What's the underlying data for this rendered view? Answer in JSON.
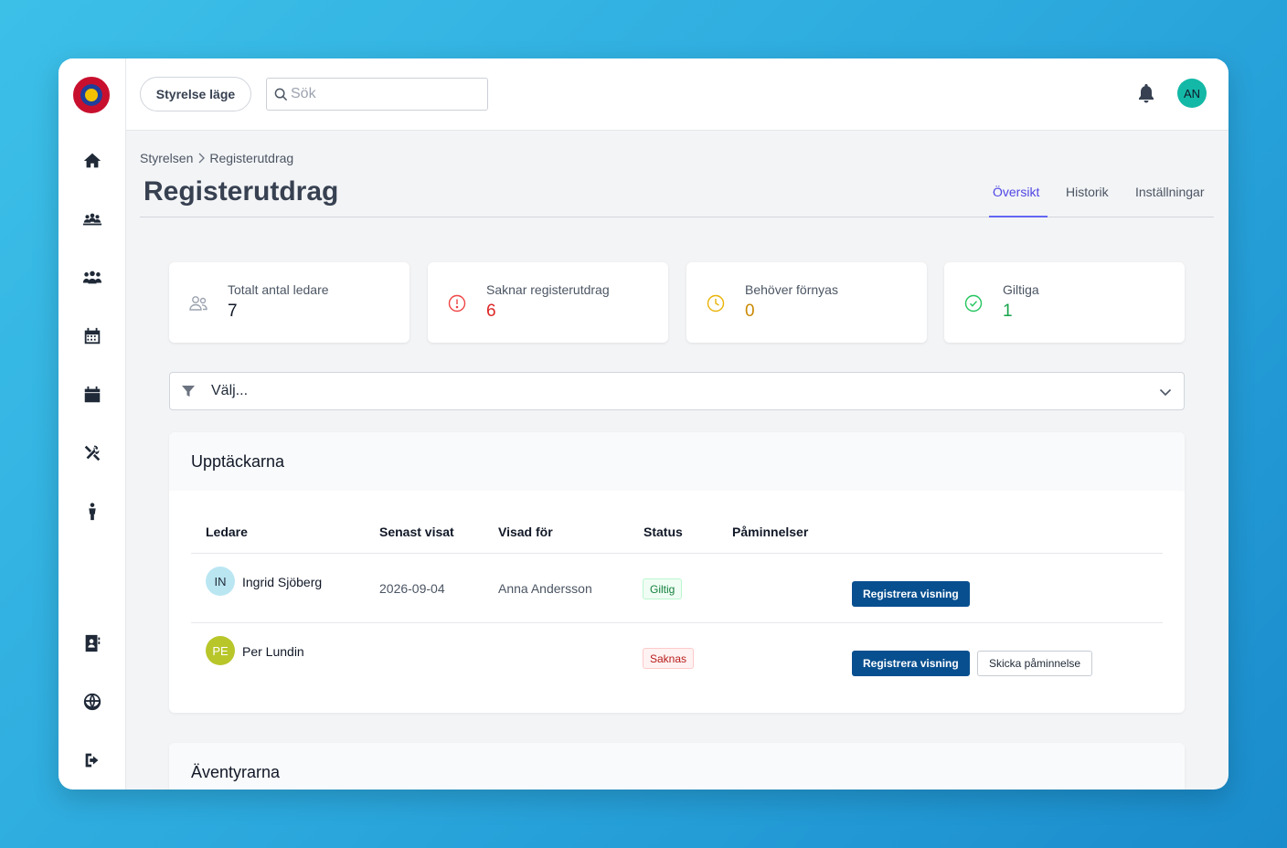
{
  "header": {
    "mode_button": "Styrelse läge",
    "search_placeholder": "Sök",
    "user_initials": "AN"
  },
  "breadcrumb": {
    "parent": "Styrelsen",
    "current": "Registerutdrag"
  },
  "page": {
    "title": "Registerutdrag"
  },
  "tabs": [
    {
      "label": "Översikt",
      "active": true
    },
    {
      "label": "Historik",
      "active": false
    },
    {
      "label": "Inställningar",
      "active": false
    }
  ],
  "stats": [
    {
      "label": "Totalt antal ledare",
      "value": "7",
      "color": "#111827",
      "icon": "users-icon"
    },
    {
      "label": "Saknar registerutdrag",
      "value": "6",
      "color": "#dc2626",
      "icon": "alert-circle-icon"
    },
    {
      "label": "Behöver förnyas",
      "value": "0",
      "color": "#ca8a04",
      "icon": "clock-icon"
    },
    {
      "label": "Giltiga",
      "value": "1",
      "color": "#16a34a",
      "icon": "check-circle-icon"
    }
  ],
  "filter": {
    "placeholder": "Välj..."
  },
  "sections": [
    {
      "title": "Upptäckarna",
      "columns": [
        "Ledare",
        "Senast visat",
        "Visad för",
        "Status",
        "Påminnelser"
      ],
      "rows": [
        {
          "initials": "IN",
          "avatar_color": "#bae6f2",
          "name": "Ingrid Sjöberg",
          "last_shown": "2026-09-04",
          "shown_to": "Anna Andersson",
          "status": "Giltig",
          "primary_action": "Registrera visning",
          "secondary_action": ""
        },
        {
          "initials": "PE",
          "avatar_color": "#b8c62a",
          "name": "Per Lundin",
          "last_shown": "",
          "shown_to": "",
          "status": "Saknas",
          "primary_action": "Registrera visning",
          "secondary_action": "Skicka påminnelse"
        }
      ]
    },
    {
      "title": "Äventyrarna"
    }
  ]
}
